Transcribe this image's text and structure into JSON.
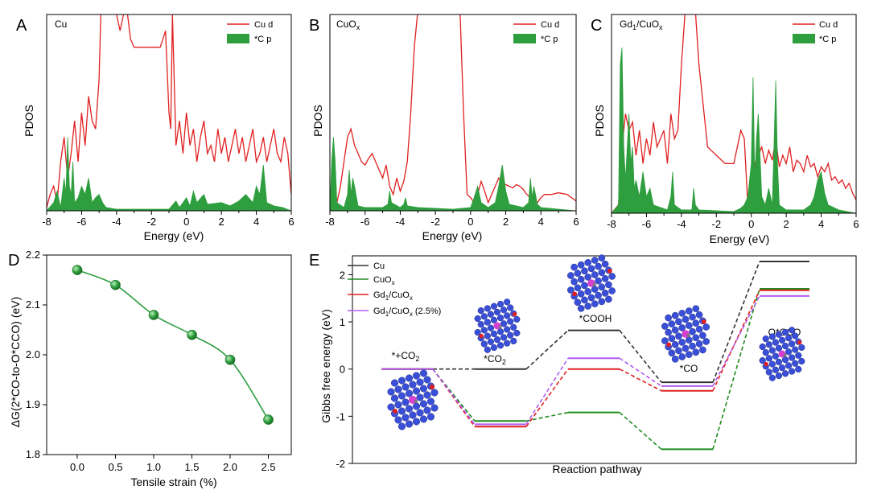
{
  "chart_data": [
    {
      "panel": "A",
      "type": "area",
      "title": "Cu",
      "xlabel": "Energy (eV)",
      "ylabel": "PDOS",
      "xlim": [
        -8,
        6
      ],
      "xticks": [
        "-8",
        "-6",
        "-4",
        "-2",
        "0",
        "2",
        "4",
        "6"
      ],
      "legend": [
        "Cu d",
        "*C p"
      ],
      "legend_position": "top-right",
      "series": [
        {
          "name": "Cu d",
          "color": "#e02020",
          "style": "line",
          "x": [
            -8,
            -7.8,
            -7.6,
            -7.4,
            -7.2,
            -7.0,
            -6.8,
            -6.6,
            -6.4,
            -6.2,
            -6.0,
            -5.8,
            -5.6,
            -5.4,
            -5.2,
            -5.0,
            -4.9,
            -4.8,
            -4.7,
            -4.6,
            -4.5,
            -4.4,
            -4.2,
            -4.0,
            -3.8,
            -3.6,
            -3.4,
            -3.2,
            -3.0,
            -2.5,
            -2.0,
            -1.5,
            -1.2,
            -1.0,
            -0.9,
            -0.8,
            -0.6,
            -0.4,
            -0.2,
            0,
            0.2,
            0.4,
            0.6,
            0.8,
            1.0,
            1.2,
            1.4,
            1.6,
            1.8,
            2.0,
            2.2,
            2.4,
            2.6,
            2.8,
            3.0,
            3.2,
            3.4,
            3.6,
            3.8,
            4.0,
            4.2,
            4.4,
            4.6,
            4.8,
            5.0,
            5.2,
            5.4,
            5.6,
            5.8,
            6
          ],
          "y": [
            0.02,
            0.1,
            0.15,
            0.05,
            0.3,
            0.45,
            0.2,
            0.35,
            0.55,
            0.3,
            0.6,
            0.4,
            0.7,
            0.55,
            0.5,
            0.8,
            1.2,
            1.5,
            1.8,
            1.6,
            1.4,
            1.6,
            1.3,
            1.2,
            1.1,
            1.2,
            1.3,
            1.05,
            1.0,
            1.0,
            1.0,
            1.0,
            1.1,
            0.6,
            0.5,
            1.2,
            0.4,
            0.55,
            0.35,
            0.6,
            0.4,
            0.5,
            0.3,
            0.45,
            0.55,
            0.35,
            0.4,
            0.3,
            0.5,
            0.35,
            0.45,
            0.3,
            0.4,
            0.5,
            0.35,
            0.45,
            0.3,
            0.4,
            0.5,
            0.3,
            0.35,
            0.45,
            0.3,
            0.4,
            0.5,
            0.35,
            0.3,
            0.45,
            0.35,
            0.1
          ]
        },
        {
          "name": "*C p",
          "color": "#2e9e3e",
          "style": "fill",
          "x": [
            -8,
            -7.6,
            -7.4,
            -7.2,
            -7.0,
            -6.9,
            -6.8,
            -6.7,
            -6.6,
            -6.5,
            -6.4,
            -6.2,
            -6.0,
            -5.8,
            -5.6,
            -5.4,
            -5.2,
            -5.0,
            -4.8,
            -4.6,
            -4,
            -2,
            -1,
            -0.6,
            -0.4,
            -0.2,
            0,
            0.2,
            0.4,
            0.6,
            1,
            1.2,
            2,
            2.5,
            3,
            3.4,
            3.8,
            4.0,
            4.2,
            4.4,
            4.6,
            5,
            5.5,
            6
          ],
          "y": [
            0,
            0.05,
            0.12,
            0.02,
            0.2,
            0.1,
            0.45,
            0.15,
            0.1,
            0.3,
            0.05,
            0.08,
            0.15,
            0.1,
            0.2,
            0.05,
            0.08,
            0.1,
            0.05,
            0.02,
            0.01,
            0.01,
            0.01,
            0.06,
            0.02,
            0.05,
            0.08,
            0.03,
            0.12,
            0.05,
            0.1,
            0.04,
            0.05,
            0.03,
            0.06,
            0.1,
            0.05,
            0.15,
            0.1,
            0.28,
            0.05,
            0.03,
            0.02,
            0
          ]
        }
      ]
    },
    {
      "panel": "B",
      "type": "area",
      "title": "CuOx",
      "xlabel": "Energy (eV)",
      "ylabel": "PDOS",
      "xlim": [
        -8,
        6
      ],
      "xticks": [
        "-8",
        "-6",
        "-4",
        "-2",
        "0",
        "2",
        "4",
        "6"
      ],
      "legend": [
        "Cu d",
        "*C p"
      ],
      "legend_position": "top-right",
      "series": [
        {
          "name": "Cu d",
          "color": "#e02020",
          "style": "line",
          "x": [
            -8,
            -7.8,
            -7.6,
            -7.4,
            -7.2,
            -7.0,
            -6.8,
            -6.6,
            -6.4,
            -6.2,
            -6.0,
            -5.8,
            -5.6,
            -5.4,
            -5.2,
            -5.0,
            -4.8,
            -4.6,
            -4.4,
            -4.2,
            -4.0,
            -3.8,
            -3.6,
            -3.4,
            -3.2,
            -3.0,
            -2.8,
            -2.5,
            -2.0,
            -1.5,
            -1.0,
            -0.6,
            -0.4,
            -0.2,
            0,
            0.2,
            0.4,
            0.6,
            0.8,
            1.0,
            1.2,
            1.4,
            1.6,
            1.8,
            2.0,
            2.2,
            2.4,
            2.6,
            2.8,
            3.0,
            3.2,
            3.4,
            3.6,
            3.8,
            4.0,
            4.2,
            4.6,
            5,
            5.5,
            6
          ],
          "y": [
            0,
            0.02,
            0.05,
            0.15,
            0.3,
            0.45,
            0.5,
            0.4,
            0.35,
            0.3,
            0.28,
            0.32,
            0.35,
            0.3,
            0.25,
            0.2,
            0.28,
            0.15,
            0.1,
            0.2,
            0.12,
            0.18,
            0.3,
            0.6,
            1.0,
            1.4,
            1.5,
            1.5,
            1.5,
            1.5,
            1.5,
            1.4,
            0.6,
            0.1,
            0.08,
            0.05,
            0.1,
            0.18,
            0.12,
            0.05,
            0.1,
            0.15,
            0.2,
            0.17,
            0.16,
            0.15,
            0.14,
            0.16,
            0.15,
            0.13,
            0.1,
            0.08,
            0.06,
            0.05,
            0.08,
            0.1,
            0.1,
            0.11,
            0.1,
            0.06
          ]
        },
        {
          "name": "*C p",
          "color": "#2e9e3e",
          "style": "fill",
          "x": [
            -8,
            -7.9,
            -7.8,
            -7.7,
            -7.6,
            -7.2,
            -7.0,
            -6.9,
            -6.8,
            -6.7,
            -6.6,
            -6.4,
            -6.0,
            -5.0,
            -4.7,
            -4.6,
            -4.5,
            -4.0,
            -3.8,
            -3.7,
            -3.6,
            -3.0,
            -1,
            0,
            0.2,
            0.4,
            0.6,
            1,
            1.4,
            1.6,
            1.8,
            2.0,
            2.2,
            3,
            3.3,
            3.4,
            3.5,
            3.6,
            3.8,
            4,
            5,
            6
          ],
          "y": [
            0,
            0.3,
            0.45,
            0.3,
            0.05,
            0.02,
            0.1,
            0.25,
            0.1,
            0.2,
            0.15,
            0.03,
            0.02,
            0.02,
            0.04,
            0.12,
            0.05,
            0.02,
            0.04,
            0.08,
            0.03,
            0.02,
            0.01,
            0.02,
            0.08,
            0.15,
            0.05,
            0.02,
            0.05,
            0.15,
            0.28,
            0.12,
            0.04,
            0.02,
            0.05,
            0.2,
            0.08,
            0.15,
            0.04,
            0.02,
            0.01,
            0
          ]
        }
      ]
    },
    {
      "panel": "C",
      "type": "area",
      "title": "Gd1/CuOx",
      "xlabel": "Energy (eV)",
      "ylabel": "PDOS",
      "xlim": [
        -8,
        6
      ],
      "xticks": [
        "-8",
        "-6",
        "-4",
        "-2",
        "0",
        "2",
        "4",
        "6"
      ],
      "legend": [
        "Cu d",
        "*C p"
      ],
      "legend_position": "top-right",
      "series": [
        {
          "name": "Cu d",
          "color": "#e02020",
          "style": "line",
          "x": [
            -8,
            -7.6,
            -7.4,
            -7.2,
            -7.0,
            -6.8,
            -6.6,
            -6.4,
            -6.2,
            -6.0,
            -5.8,
            -5.6,
            -5.4,
            -5.2,
            -5.0,
            -4.8,
            -4.6,
            -4.4,
            -4.2,
            -4.0,
            -3.8,
            -3.6,
            -3.4,
            -3.2,
            -3.0,
            -2.5,
            -2.0,
            -1.5,
            -1.0,
            -0.6,
            -0.4,
            -0.2,
            0,
            0.2,
            0.4,
            0.6,
            0.8,
            1.0,
            1.2,
            1.4,
            1.6,
            1.8,
            2.0,
            2.2,
            2.4,
            2.6,
            2.8,
            3.0,
            3.2,
            3.4,
            3.6,
            3.8,
            4.0,
            4.2,
            4.4,
            4.6,
            4.8,
            5.0,
            5.2,
            5.4,
            5.6,
            5.8,
            6
          ],
          "y": [
            0,
            0.05,
            0.4,
            0.6,
            0.5,
            0.55,
            0.35,
            0.5,
            0.3,
            0.45,
            0.35,
            0.55,
            0.4,
            0.45,
            0.5,
            0.3,
            0.6,
            0.45,
            0.5,
            0.9,
            1.2,
            1.5,
            1.5,
            1.5,
            0.9,
            0.4,
            0.35,
            0.3,
            0.3,
            0.5,
            0.45,
            0.05,
            0.08,
            0.3,
            0.35,
            0.4,
            0.3,
            0.38,
            0.32,
            0.45,
            0.28,
            0.35,
            0.3,
            0.4,
            0.25,
            0.32,
            0.3,
            0.25,
            0.35,
            0.28,
            0.3,
            0.22,
            0.28,
            0.25,
            0.3,
            0.2,
            0.22,
            0.18,
            0.2,
            0.15,
            0.18,
            0.12,
            0.08
          ]
        },
        {
          "name": "*C p",
          "color": "#2e9e3e",
          "style": "fill",
          "x": [
            -8,
            -7.6,
            -7.5,
            -7.4,
            -7.3,
            -7.2,
            -7.0,
            -6.9,
            -6.8,
            -6.7,
            -6.6,
            -6.4,
            -6.2,
            -6.0,
            -5.8,
            -5.6,
            -4.8,
            -4.6,
            -4.5,
            -4.4,
            -4.0,
            -3.4,
            -3.3,
            -3.2,
            -3.0,
            -1,
            -0.6,
            -0.4,
            -0.2,
            0,
            0.1,
            0.2,
            0.3,
            0.4,
            0.6,
            0.8,
            1.0,
            1.2,
            1.3,
            1.4,
            1.5,
            1.6,
            2.0,
            3.0,
            3.4,
            3.6,
            3.8,
            4.0,
            4.2,
            4.4,
            5,
            6
          ],
          "y": [
            0,
            0.05,
            0.9,
            1.0,
            0.4,
            0.2,
            0.6,
            0.3,
            0.4,
            0.15,
            0.2,
            0.1,
            0.25,
            0.1,
            0.15,
            0.05,
            0.02,
            0.1,
            0.25,
            0.05,
            0.02,
            0.02,
            0.15,
            0.05,
            0.02,
            0.01,
            0.03,
            0.05,
            0.1,
            0.3,
            0.82,
            0.2,
            0.45,
            0.6,
            0.1,
            0.05,
            0.15,
            0.05,
            0.4,
            0.8,
            0.3,
            0.05,
            0.02,
            0.02,
            0.05,
            0.1,
            0.2,
            0.25,
            0.12,
            0.05,
            0.02,
            0
          ]
        }
      ]
    },
    {
      "panel": "D",
      "type": "scatter",
      "xlabel": "Tensile strain (%)",
      "ylabel": "ΔG(2*CO-to-O*CCO) (eV)",
      "xlim": [
        -0.4,
        2.8
      ],
      "ylim": [
        1.8,
        2.2
      ],
      "xticks": [
        "0.0",
        "0.5",
        "1.0",
        "1.5",
        "2.0",
        "2.5"
      ],
      "yticks": [
        "1.8",
        "1.9",
        "2.0",
        "2.1",
        "2.2"
      ],
      "x": [
        0.0,
        0.5,
        1.0,
        1.5,
        2.0,
        2.5
      ],
      "y": [
        2.17,
        2.14,
        2.08,
        2.04,
        1.99,
        1.87
      ],
      "color": "#2e9e3e"
    },
    {
      "panel": "E",
      "type": "line",
      "xlabel": "Reaction pathway",
      "ylabel": "Gibbs free energy (eV)",
      "ylim": [
        -2,
        2.4
      ],
      "yticks": [
        "-2",
        "-1",
        "0",
        "1",
        "2"
      ],
      "states": [
        "*+CO2",
        "*CO2",
        "*COOH",
        "*CO",
        "O*CCO"
      ],
      "legend_position": "top-left",
      "series": [
        {
          "name": "Cu",
          "color": "#333333",
          "values": [
            0,
            0.0,
            0.82,
            -0.28,
            2.28
          ]
        },
        {
          "name": "CuOx",
          "color": "#1e8c1e",
          "values": [
            0,
            -1.1,
            -0.92,
            -1.7,
            1.7
          ]
        },
        {
          "name": "Gd1/CuOx",
          "color": "#e02020",
          "values": [
            0,
            -1.22,
            0.0,
            -0.46,
            1.67
          ]
        },
        {
          "name": "Gd1/CuOx (2.5%)",
          "color": "#b05cf0",
          "values": [
            0,
            -1.17,
            0.23,
            -0.36,
            1.55
          ]
        }
      ]
    }
  ],
  "labels": {
    "panelA": "A",
    "panelB": "B",
    "panelC": "C",
    "panelD": "D",
    "panelE": "E",
    "titleA": "Cu",
    "titleB_main": "CuO",
    "titleB_sub": "x",
    "titleC_a": "Gd",
    "titleC_sub1": "1",
    "titleC_b": "/CuO",
    "titleC_sub2": "x",
    "legend_cud": "Cu d",
    "legend_cp": "*C p",
    "pdos": "PDOS",
    "energy": "Energy (eV)",
    "d_xlabel": "Tensile strain (%)",
    "d_ylabel": "ΔG(2*CO-to-O*CCO) (eV)",
    "e_xlabel": "Reaction pathway",
    "e_ylabel": "Gibbs free energy (eV)",
    "leg_cu": "Cu",
    "leg_cuox_a": "CuO",
    "leg_cuox_sub": "x",
    "leg_gd_a": "Gd",
    "leg_gd_sub1": "1",
    "leg_gd_b": "/CuO",
    "leg_gd_sub2": "x",
    "leg_gd25_c": " (2.5%)",
    "st0": "*+CO",
    "st0_sub": "2",
    "st1": "*CO",
    "st1_sub": "2",
    "st2": "*COOH",
    "st3": "*CO",
    "st4": "O*CCO"
  }
}
